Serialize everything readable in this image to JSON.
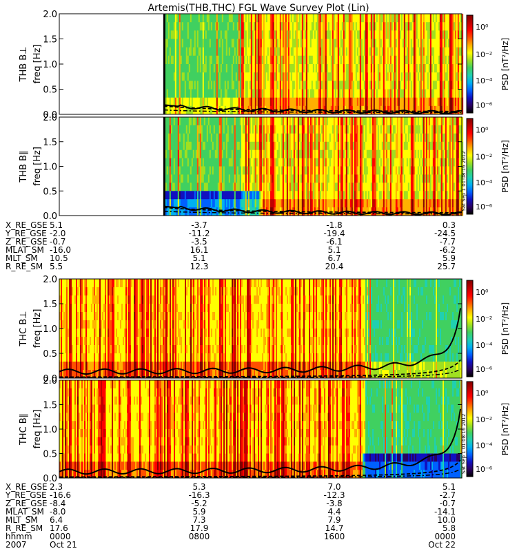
{
  "title": "Artemis(THB,THC) FGL Wave Survey Plot (Lin)",
  "colors": {
    "colorbar": [
      "#000000",
      "#2a0060",
      "#1010c0",
      "#0060ff",
      "#00b0f0",
      "#20d0b0",
      "#40d060",
      "#a0e020",
      "#ffff00",
      "#ffb000",
      "#ff5000",
      "#ff0000",
      "#c00000",
      "#800000"
    ],
    "white": "#ffffff"
  },
  "chart_data": [
    {
      "type": "heatmap",
      "probe": "THB",
      "component": "perpendicular",
      "panel_label": "THB B⊥",
      "ylabel": "freq [Hz]",
      "ylim": [
        0,
        2.0
      ],
      "yticks": [
        "0.0",
        "0.5",
        "1.0",
        "1.5",
        "2.0"
      ],
      "colorbar_label": "PSD [nT²/Hz]",
      "colorbar_scale": "log",
      "colorbar_ticks": [
        "10⁰",
        "10⁻²",
        "10⁻⁴",
        "10⁻⁶"
      ],
      "data_start_frac": 0.26,
      "overlay_curves": [
        "solid",
        "dashed",
        "dash-dot"
      ]
    },
    {
      "type": "heatmap",
      "probe": "THB",
      "component": "parallel",
      "panel_label": "THB B∥",
      "ylabel": "freq [Hz]",
      "ylim": [
        0,
        2.0
      ],
      "yticks": [
        "0.0",
        "0.5",
        "1.0",
        "1.5",
        "2.0"
      ],
      "colorbar_label": "PSD [nT²/Hz]",
      "colorbar_scale": "log",
      "colorbar_ticks": [
        "10⁰",
        "10⁻²",
        "10⁻⁴",
        "10⁻⁶"
      ],
      "data_start_frac": 0.26,
      "overlay_curves": [
        "solid",
        "dashed",
        "dash-dot"
      ]
    },
    {
      "type": "heatmap",
      "probe": "THC",
      "component": "perpendicular",
      "panel_label": "THC B⊥",
      "ylabel": "freq [Hz]",
      "ylim": [
        0,
        2.0
      ],
      "yticks": [
        "0.0",
        "0.5",
        "1.0",
        "1.5",
        "2.0"
      ],
      "colorbar_label": "PSD [nT²/Hz]",
      "colorbar_scale": "log",
      "colorbar_ticks": [
        "10⁰",
        "10⁻²",
        "10⁻⁴",
        "10⁻⁶"
      ],
      "data_start_frac": 0.0,
      "overlay_curves": [
        "solid",
        "dashed",
        "dash-dot"
      ]
    },
    {
      "type": "heatmap",
      "probe": "THC",
      "component": "parallel",
      "panel_label": "THC B∥",
      "ylabel": "freq [Hz]",
      "ylim": [
        0,
        2.0
      ],
      "yticks": [
        "0.0",
        "0.5",
        "1.0",
        "1.5",
        "2.0"
      ],
      "colorbar_label": "PSD [nT²/Hz]",
      "colorbar_scale": "log",
      "colorbar_ticks": [
        "10⁰",
        "10⁻²",
        "10⁻⁴",
        "10⁻⁶"
      ],
      "data_start_frac": 0.0,
      "overlay_curves": [
        "solid",
        "dashed",
        "dash-dot"
      ]
    }
  ],
  "stamp": "Sat Sep 1 01:08:16 2012",
  "ephemeris": {
    "thb": [
      {
        "label": "X_RE_GSE",
        "values": [
          "5.1",
          "-3.7",
          "-1.8",
          "0.3"
        ]
      },
      {
        "label": "Y_RE_GSE",
        "values": [
          "-2.0",
          "-11.2",
          "-19.4",
          "-24.5"
        ]
      },
      {
        "label": "Z_RE_GSE",
        "values": [
          "-0.7",
          "-3.5",
          "-6.1",
          "-7.7"
        ]
      },
      {
        "label": "MLAT_SM",
        "values": [
          "-16.0",
          "16.1",
          "5.1",
          "-6.2"
        ]
      },
      {
        "label": "MLT_SM",
        "values": [
          "10.5",
          "5.1",
          "6.7",
          "5.9"
        ]
      },
      {
        "label": "R_RE_SM",
        "values": [
          "5.5",
          "12.3",
          "20.4",
          "25.7"
        ]
      }
    ],
    "thc": [
      {
        "label": "X_RE_GSE",
        "values": [
          "2.3",
          "5.3",
          "7.0",
          "5.1"
        ]
      },
      {
        "label": "Y_RE_GSE",
        "values": [
          "-16.6",
          "-16.3",
          "-12.3",
          "-2.7"
        ]
      },
      {
        "label": "Z_RE_GSE",
        "values": [
          "-8.4",
          "-5.2",
          "-3.8",
          "-0.7"
        ]
      },
      {
        "label": "MLAT_SM",
        "values": [
          "-8.0",
          "5.9",
          "4.4",
          "-14.1"
        ]
      },
      {
        "label": "MLT_SM",
        "values": [
          "6.4",
          "7.3",
          "7.9",
          "10.0"
        ]
      },
      {
        "label": "R_RE_SM",
        "values": [
          "17.6",
          "17.9",
          "14.7",
          "5.8"
        ]
      },
      {
        "label": "hhmm",
        "values": [
          "0000",
          "0800",
          "1600",
          "0000"
        ]
      }
    ],
    "date_row": {
      "label": "2007",
      "values": [
        "Oct 21",
        "Oct 22"
      ]
    }
  }
}
